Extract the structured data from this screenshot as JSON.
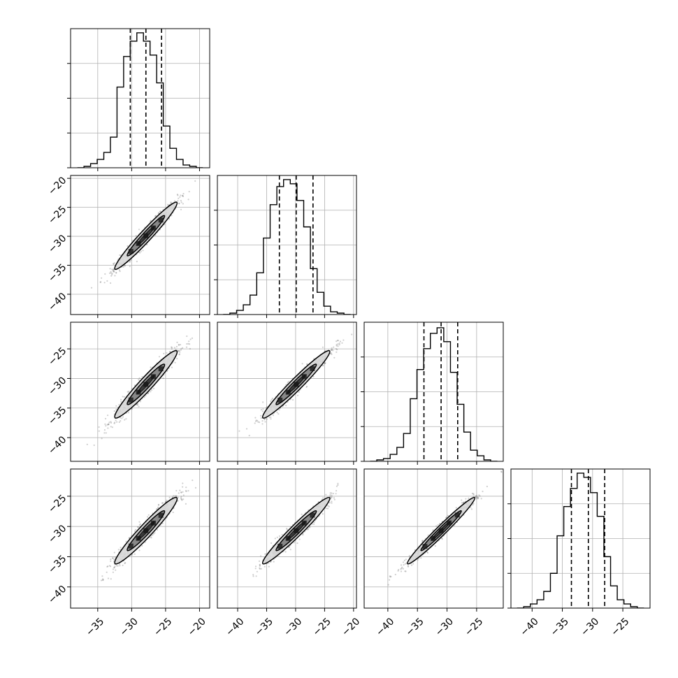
{
  "chart_data": {
    "type": "corner",
    "title": "",
    "params": [
      {
        "name": "",
        "range": [
          -39,
          -18.5
        ],
        "ticks": [
          "−35",
          "−30",
          "−25",
          "−20"
        ],
        "tick_values": [
          -35,
          -30,
          -25,
          -20
        ],
        "quantiles": [
          -30.2,
          -27.9,
          -25.6
        ]
      },
      {
        "name": "",
        "range": [
          -43.5,
          -19.5
        ],
        "ticks": [
          "−40",
          "−35",
          "−30",
          "−25",
          "−20"
        ],
        "tick_values": [
          -40,
          -35,
          -30,
          -25,
          -20
        ],
        "quantiles": [
          -32.8,
          -29.9,
          -27.0
        ]
      },
      {
        "name": "",
        "range": [
          -44,
          -20.5
        ],
        "ticks": [
          "−40",
          "−35",
          "−30",
          "−25"
        ],
        "tick_values": [
          -40,
          -35,
          -30,
          -25
        ],
        "quantiles": [
          -33.9,
          -31.0,
          -28.2
        ]
      },
      {
        "name": "",
        "range": [
          -43.5,
          -20.5
        ],
        "ticks": [
          "−40",
          "−35",
          "−30",
          "−25"
        ],
        "tick_values": [
          -40,
          -35,
          -30,
          -25
        ],
        "quantiles": [
          -33.5,
          -30.7,
          -28.0
        ]
      }
    ],
    "histogram_counts": [
      [
        0.0,
        0.01,
        0.03,
        0.06,
        0.11,
        0.22,
        0.58,
        0.8,
        0.91,
        0.97,
        0.91,
        0.81,
        0.61,
        0.3,
        0.14,
        0.06,
        0.02,
        0.01,
        0.0
      ],
      [
        0.0,
        0.01,
        0.03,
        0.07,
        0.14,
        0.3,
        0.55,
        0.79,
        0.92,
        0.97,
        0.94,
        0.82,
        0.63,
        0.33,
        0.16,
        0.06,
        0.02,
        0.01,
        0.0
      ],
      [
        0.0,
        0.01,
        0.02,
        0.05,
        0.1,
        0.2,
        0.45,
        0.66,
        0.81,
        0.92,
        0.96,
        0.86,
        0.64,
        0.41,
        0.21,
        0.08,
        0.04,
        0.01,
        0.0
      ],
      [
        0.0,
        0.01,
        0.03,
        0.06,
        0.12,
        0.25,
        0.52,
        0.73,
        0.86,
        0.97,
        0.94,
        0.83,
        0.66,
        0.37,
        0.16,
        0.06,
        0.03,
        0.01,
        0.0
      ]
    ],
    "histogram_ticks": [
      "",
      "",
      "",
      ""
    ],
    "pair_stats": [
      {
        "row": 1,
        "col": 0,
        "corr": 0.97
      },
      {
        "row": 2,
        "col": 0,
        "corr": 0.96
      },
      {
        "row": 2,
        "col": 1,
        "corr": 0.97
      },
      {
        "row": 3,
        "col": 0,
        "corr": 0.96
      },
      {
        "row": 3,
        "col": 1,
        "corr": 0.97
      },
      {
        "row": 3,
        "col": 2,
        "corr": 0.98
      }
    ],
    "grid": true,
    "colors": {
      "scatter": "#555555",
      "contour": "#000000",
      "fill_dark": "#333333",
      "fill_mid": "#7f7f7f",
      "fill_light": "#d9d9d9",
      "grid": "#b0b0b0"
    }
  }
}
